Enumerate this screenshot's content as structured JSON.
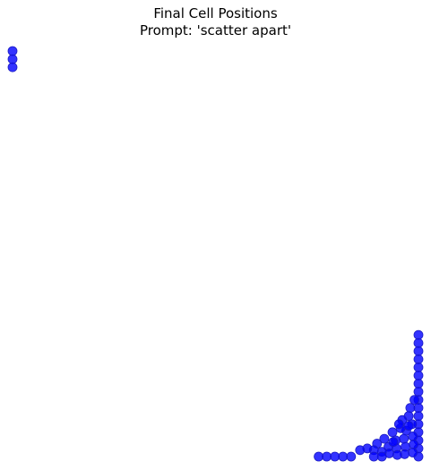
{
  "chart_data": {
    "type": "scatter",
    "title": "Final Cell Positions",
    "subtitle": "Prompt: 'scatter apart'",
    "axes_visible": false,
    "xlim": [
      0,
      50
    ],
    "ylim": [
      0,
      50
    ],
    "marker_color": "#0000ff",
    "marker_edge_color": "#1c1cc4",
    "marker_alpha": 0.8,
    "points": [
      {
        "x": 0,
        "y": 50
      },
      {
        "x": 0,
        "y": 49
      },
      {
        "x": 0,
        "y": 48
      },
      {
        "x": 50,
        "y": 15
      },
      {
        "x": 50,
        "y": 14
      },
      {
        "x": 50,
        "y": 13
      },
      {
        "x": 50,
        "y": 12
      },
      {
        "x": 50,
        "y": 11
      },
      {
        "x": 50,
        "y": 10
      },
      {
        "x": 50,
        "y": 9
      },
      {
        "x": 50,
        "y": 8
      },
      {
        "x": 50,
        "y": 7
      },
      {
        "x": 50,
        "y": 6
      },
      {
        "x": 50,
        "y": 5
      },
      {
        "x": 50,
        "y": 4
      },
      {
        "x": 50,
        "y": 3
      },
      {
        "x": 50,
        "y": 2
      },
      {
        "x": 50,
        "y": 1
      },
      {
        "x": 50,
        "y": 0
      },
      {
        "x": 49.5,
        "y": 7
      },
      {
        "x": 49,
        "y": 6
      },
      {
        "x": 48.8,
        "y": 5
      },
      {
        "x": 48,
        "y": 4.5
      },
      {
        "x": 49.2,
        "y": 4
      },
      {
        "x": 48.5,
        "y": 3.2
      },
      {
        "x": 47.8,
        "y": 3.5
      },
      {
        "x": 49.3,
        "y": 2.5
      },
      {
        "x": 48.2,
        "y": 2.2
      },
      {
        "x": 47.2,
        "y": 2
      },
      {
        "x": 46.8,
        "y": 3
      },
      {
        "x": 49.4,
        "y": 1.5
      },
      {
        "x": 48.4,
        "y": 1.2
      },
      {
        "x": 47.3,
        "y": 1
      },
      {
        "x": 46.3,
        "y": 1.2
      },
      {
        "x": 45.8,
        "y": 2.2
      },
      {
        "x": 44.9,
        "y": 1.6
      },
      {
        "x": 49.3,
        "y": 0.5
      },
      {
        "x": 48.3,
        "y": 0.3
      },
      {
        "x": 47.4,
        "y": 0.2
      },
      {
        "x": 46.4,
        "y": 0.4
      },
      {
        "x": 45.5,
        "y": 0.6
      },
      {
        "x": 44.5,
        "y": 0.8
      },
      {
        "x": 43.7,
        "y": 1
      },
      {
        "x": 42.8,
        "y": 0.8
      },
      {
        "x": 45.5,
        "y": 0
      },
      {
        "x": 44.5,
        "y": 0
      },
      {
        "x": 41.7,
        "y": 0
      },
      {
        "x": 40.7,
        "y": 0
      },
      {
        "x": 39.7,
        "y": 0
      },
      {
        "x": 38.7,
        "y": 0
      },
      {
        "x": 37.7,
        "y": 0
      },
      {
        "x": 48.8,
        "y": 3.8
      },
      {
        "x": 47.6,
        "y": 4
      },
      {
        "x": 46.9,
        "y": 1.8
      }
    ]
  }
}
